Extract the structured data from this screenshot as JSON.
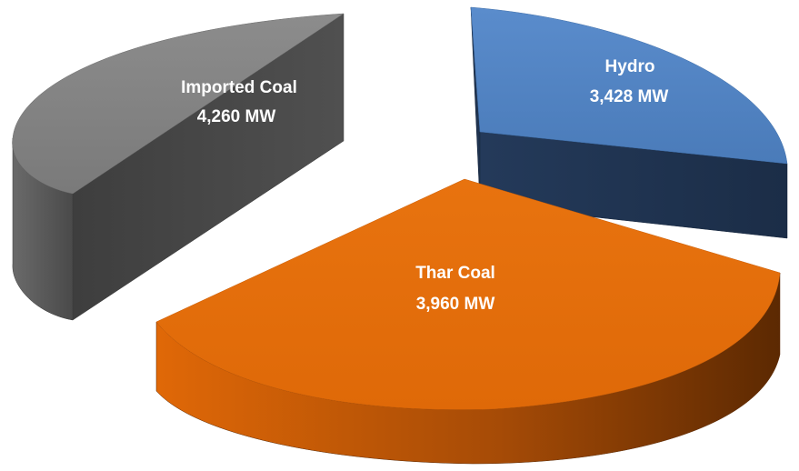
{
  "chart_data": {
    "type": "pie",
    "style": "3d-exploded",
    "unit": "MW",
    "categories": [
      "Hydro",
      "Thar Coal",
      "Imported Coal"
    ],
    "values": [
      3428,
      3960,
      4260
    ],
    "value_labels": [
      "3,428 MW",
      "3,960 MW",
      "4,260 MW"
    ],
    "colors": {
      "Hydro": "#4f81bd",
      "Thar Coal": "#e46c0a",
      "Imported Coal": "#808080"
    },
    "title": "",
    "legend": "none"
  }
}
